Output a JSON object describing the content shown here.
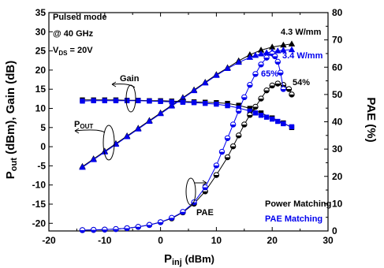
{
  "chart_data": {
    "type": "line",
    "title": "",
    "xlabel_main": "P",
    "xlabel_sub": "inj",
    "xlabel_unit": " (dBm)",
    "ylabel_left_p": "P",
    "ylabel_left_sub": "out",
    "ylabel_left_rest": " (dBm), Gain (dB)",
    "ylabel_right": "PAE (%)",
    "xlim": [
      -20,
      30
    ],
    "ylim_left": [
      -22,
      35
    ],
    "ylim_right": [
      0,
      80
    ],
    "xticks": [
      "-20",
      "-10",
      "0",
      "10",
      "20",
      "30"
    ],
    "yticks_left": [
      "-20",
      "-15",
      "-10",
      "-5",
      "0",
      "5",
      "10",
      "15",
      "20",
      "25",
      "30",
      "35"
    ],
    "yticks_right": [
      "0",
      "10",
      "20",
      "30",
      "40",
      "50",
      "60",
      "70",
      "80"
    ],
    "conditions": {
      "line1": "Pulsed mode",
      "line2": "@ 40 GHz",
      "line3_v": "V",
      "line3_sub": "DS",
      "line3_rest": " = 20V"
    },
    "legend": {
      "power": "Power Matching",
      "pae": "PAE Matching",
      "power_color": "#000000",
      "pae_color": "#0000ee"
    },
    "annotations": {
      "gain": "Gain",
      "pout_p": "P",
      "pout_sub": "OUT",
      "pae": "PAE",
      "pd_power": "4.3 W/mm",
      "pd_pae": "3.4 W/mm",
      "pae_max_pae": "65%",
      "pae_max_power": "54%"
    },
    "series": [
      {
        "axis": "left",
        "color": "#000000",
        "marker": "triangle",
        "x": [
          -14,
          -12,
          -10,
          -8,
          -6,
          -4,
          -2,
          0,
          2,
          4,
          6,
          8,
          10,
          12,
          14,
          16,
          18,
          20,
          22,
          23.5
        ],
        "y": [
          -5.2,
          -3.2,
          -1.2,
          0.8,
          2.8,
          4.8,
          6.8,
          8.8,
          10.8,
          12.8,
          14.8,
          16.8,
          18.8,
          20.6,
          22.4,
          24,
          25.2,
          26,
          26.5,
          26.8
        ]
      },
      {
        "axis": "left",
        "color": "#0000ee",
        "marker": "triangle",
        "x": [
          -14,
          -12,
          -10,
          -8,
          -6,
          -4,
          -2,
          0,
          2,
          4,
          6,
          8,
          10,
          12,
          14,
          16,
          17,
          18,
          19,
          20,
          21,
          22,
          23.5
        ],
        "y": [
          -5.4,
          -3.4,
          -1.4,
          0.6,
          2.6,
          4.6,
          6.6,
          8.6,
          10.6,
          12.6,
          14.6,
          16.6,
          18.6,
          20.4,
          22,
          23.3,
          23.8,
          24.2,
          24.5,
          24.8,
          25,
          25.2,
          25.3
        ]
      },
      {
        "axis": "left",
        "color": "#000000",
        "marker": "square",
        "x": [
          -14,
          -12,
          -10,
          -8,
          -6,
          -4,
          -2,
          0,
          2,
          4,
          6,
          8,
          10,
          12,
          14,
          16,
          18,
          20,
          22,
          23.5
        ],
        "y": [
          12.2,
          12.2,
          12.2,
          12.2,
          12.1,
          12.1,
          12.0,
          12.0,
          11.9,
          11.8,
          11.7,
          11.6,
          11.5,
          11.3,
          10.8,
          10.0,
          8.8,
          7.5,
          6.2,
          5.0
        ]
      },
      {
        "axis": "left",
        "color": "#0000ee",
        "marker": "square",
        "x": [
          -14,
          -12,
          -10,
          -8,
          -6,
          -4,
          -2,
          0,
          2,
          4,
          6,
          8,
          10,
          12,
          14,
          16,
          17,
          18,
          19,
          20,
          21,
          22,
          23.5
        ],
        "y": [
          11.9,
          12.0,
          12.0,
          12.0,
          12.0,
          12.0,
          11.9,
          11.8,
          11.7,
          11.6,
          11.5,
          11.3,
          11.1,
          10.7,
          10.1,
          9.3,
          8.8,
          8.2,
          7.7,
          7.2,
          6.6,
          6.0,
          5.2
        ]
      },
      {
        "axis": "right",
        "color": "#000000",
        "marker": "circle",
        "x": [
          -14,
          -12,
          -10,
          -8,
          -6,
          -4,
          -2,
          0,
          2,
          4,
          6,
          8,
          10,
          12,
          13,
          14,
          15,
          16,
          17,
          18,
          19,
          20,
          21,
          22,
          23,
          23.5
        ],
        "y": [
          0.3,
          0.4,
          0.5,
          0.7,
          1.0,
          1.5,
          2.2,
          3.2,
          4.6,
          6.8,
          10,
          14.5,
          20.5,
          27,
          31,
          35,
          39,
          42.5,
          45.5,
          48.5,
          51.5,
          53.3,
          54,
          53.5,
          52,
          50
        ]
      },
      {
        "axis": "right",
        "color": "#0000ee",
        "marker": "circle",
        "x": [
          -14,
          -12,
          -10,
          -8,
          -6,
          -4,
          -2,
          0,
          2,
          4,
          6,
          8,
          10,
          11,
          12,
          13,
          14,
          15,
          16,
          17,
          18,
          19,
          20,
          20.5,
          21,
          21.5,
          22
        ],
        "y": [
          0.3,
          0.4,
          0.5,
          0.7,
          1.0,
          1.5,
          2.2,
          3.2,
          4.8,
          7,
          10.5,
          16,
          24,
          29,
          34,
          39,
          44,
          49,
          53.5,
          57.5,
          61,
          63.5,
          65,
          64,
          62,
          58,
          52
        ]
      }
    ]
  }
}
